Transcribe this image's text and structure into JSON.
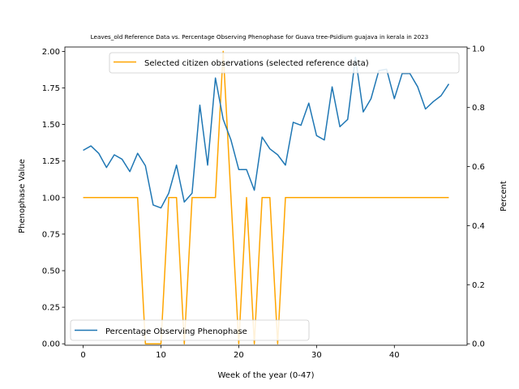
{
  "chart_data": {
    "type": "line",
    "title": "Leaves_old Reference Data vs. Percentage Observing Phenophase for Guava tree-Psidium guajava in kerala in 2023",
    "xlabel": "Week of the year (0-47)",
    "ylabel_left": "Phenophase Value",
    "ylabel_right": "Percent",
    "xlim": [
      -2.35,
      49.35
    ],
    "ylim_left": [
      -0.01,
      2.03
    ],
    "ylim_right": [
      -0.005,
      1.005
    ],
    "x_ticks": [
      0,
      10,
      20,
      30,
      40
    ],
    "y_ticks_left": [
      "0.00",
      "0.25",
      "0.50",
      "0.75",
      "1.00",
      "1.25",
      "1.50",
      "1.75",
      "2.00"
    ],
    "y_ticks_right": [
      "0.0",
      "0.2",
      "0.4",
      "0.6",
      "0.8",
      "1.0"
    ],
    "grid": false,
    "series": [
      {
        "name": "Selected citizen observations (selected reference data)",
        "axis": "left",
        "color": "#ffa500",
        "legend_position": "upper-right",
        "x": [
          0,
          1,
          2,
          3,
          4,
          5,
          6,
          7,
          8,
          9,
          10,
          11,
          12,
          13,
          14,
          15,
          16,
          17,
          18,
          19,
          20,
          21,
          22,
          23,
          24,
          25,
          26,
          27,
          28,
          29,
          30,
          31,
          32,
          33,
          34,
          35,
          36,
          37,
          38,
          39,
          40,
          41,
          42,
          43,
          44,
          45,
          46,
          47
        ],
        "values": [
          1,
          1,
          1,
          1,
          1,
          1,
          1,
          1,
          0,
          0,
          0,
          1,
          1,
          0,
          1,
          1,
          1,
          1,
          2,
          1,
          0,
          1,
          0,
          1,
          1,
          0,
          1,
          1,
          1,
          1,
          1,
          1,
          1,
          1,
          1,
          1,
          1,
          1,
          1,
          1,
          1,
          1,
          1,
          1,
          1,
          1,
          1,
          1
        ]
      },
      {
        "name": "Percentage Observing Phenophase",
        "axis": "right",
        "color": "#1f77b4",
        "legend_position": "lower-left",
        "x": [
          0,
          1,
          2,
          3,
          4,
          5,
          6,
          7,
          8,
          9,
          10,
          11,
          12,
          13,
          14,
          15,
          16,
          17,
          18,
          19,
          20,
          21,
          22,
          23,
          24,
          25,
          26,
          27,
          28,
          29,
          30,
          31,
          32,
          33,
          34,
          35,
          36,
          37,
          38,
          39,
          40,
          41,
          42,
          43,
          44,
          45,
          46,
          47
        ],
        "values": [
          0.655,
          0.67,
          0.645,
          0.597,
          0.64,
          0.625,
          0.583,
          0.645,
          0.603,
          0.47,
          0.46,
          0.51,
          0.605,
          0.48,
          0.51,
          0.808,
          0.605,
          0.9,
          0.76,
          0.69,
          0.59,
          0.59,
          0.52,
          0.7,
          0.66,
          0.64,
          0.605,
          0.75,
          0.74,
          0.815,
          0.705,
          0.69,
          0.87,
          0.735,
          0.76,
          0.97,
          0.785,
          0.83,
          0.925,
          0.93,
          0.83,
          0.915,
          0.915,
          0.87,
          0.795,
          0.82,
          0.84,
          0.88
        ]
      }
    ]
  }
}
